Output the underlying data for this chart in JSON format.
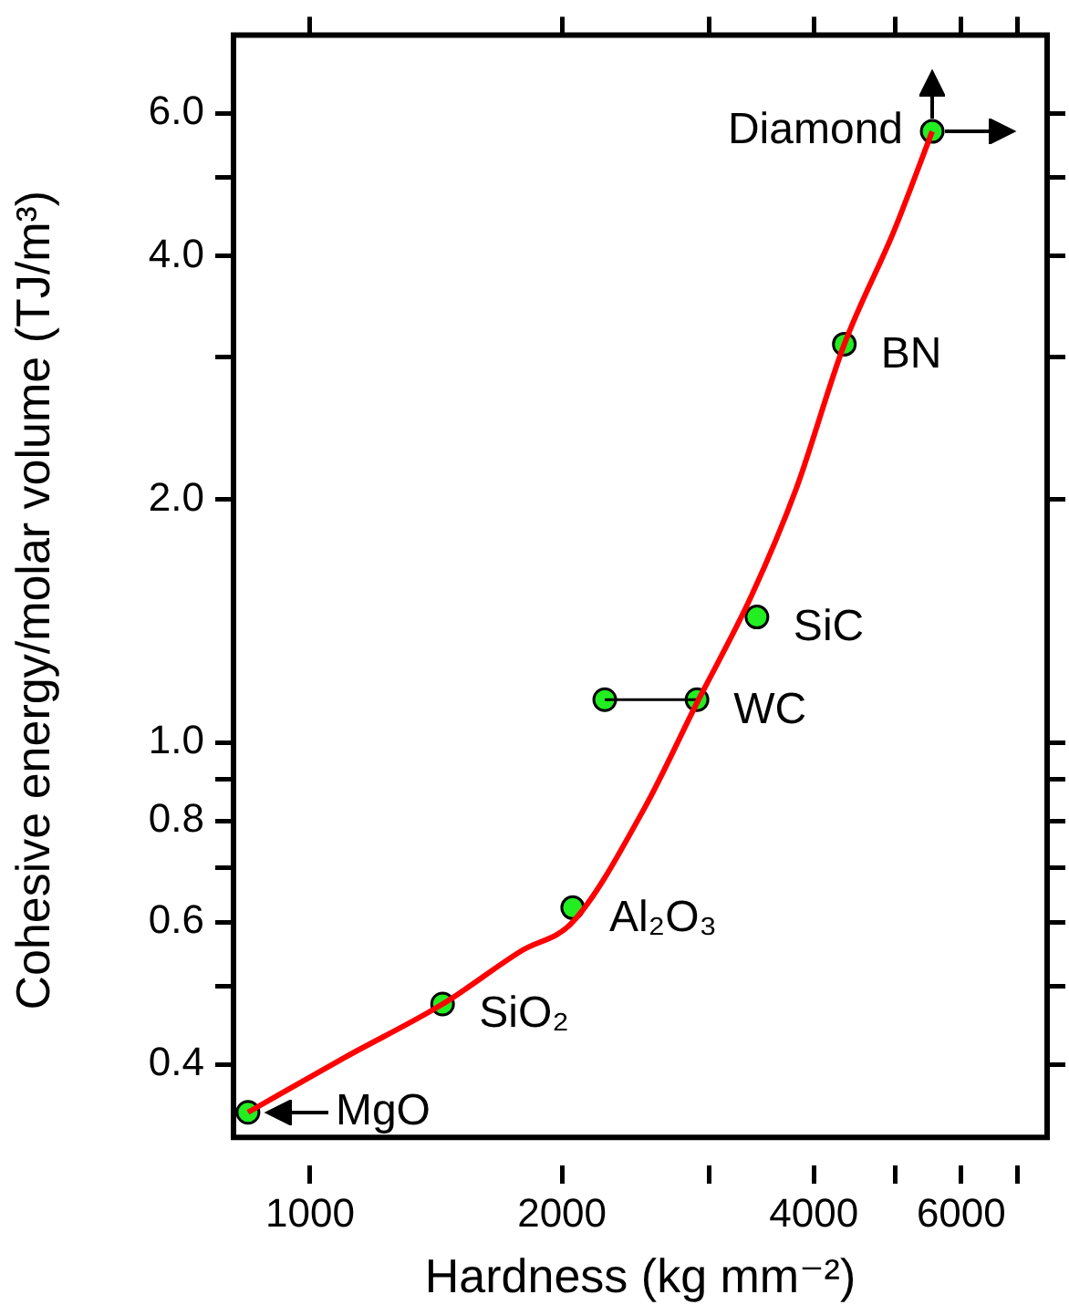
{
  "chart_data": {
    "type": "scatter",
    "xlabel": "Hardness (kg mm⁻²)",
    "ylabel": "Cohesive energy/molar volume (TJ/m³)",
    "log": "xy",
    "grid": false,
    "legend": false,
    "xlim": [
      810,
      7600
    ],
    "ylim": [
      0.325,
      7.5
    ],
    "xticks": [
      1000,
      2000,
      {
        "value": 3000,
        "label": null
      },
      4000,
      {
        "value": 5000,
        "label": null
      },
      6000,
      {
        "value": 7000,
        "label": null
      }
    ],
    "yticks": [
      0.4,
      {
        "value": 0.5,
        "label": null
      },
      0.6,
      {
        "value": 0.7,
        "label": null
      },
      0.8,
      {
        "value": 0.9,
        "label": null
      },
      {
        "value": 1,
        "label": "1.0"
      },
      {
        "value": 2,
        "label": "2.0"
      },
      {
        "value": 3,
        "label": null
      },
      {
        "value": 4,
        "label": "4.0"
      },
      {
        "value": 5,
        "label": null
      },
      {
        "value": 6,
        "label": "6.0"
      }
    ],
    "series": [
      {
        "type": "line",
        "color": "#ff0000",
        "marker": "none",
        "x": [
          843,
          1100,
          1440,
          1790,
          2060,
          2510,
          2900,
          3370,
          3810,
          4350,
          4990,
          5540
        ],
        "values": [
          0.349,
          0.408,
          0.475,
          0.553,
          0.6,
          0.83,
          1.12,
          1.52,
          2.06,
          3.11,
          4.3,
          5.7
        ]
      },
      {
        "type": "line",
        "color": "#000000",
        "marker": "none",
        "x": [
          2250,
          2900
        ],
        "values": [
          1.13,
          1.13
        ]
      },
      {
        "color": "#22ee22",
        "marker": "circle",
        "x": [
          843,
          1440,
          2060,
          2250,
          2900,
          3420,
          4350,
          5540
        ],
        "values": [
          0.349,
          0.475,
          0.625,
          1.13,
          1.13,
          1.43,
          3.11,
          5.7
        ]
      }
    ],
    "annotations": [
      {
        "text": "MgO",
        "x": 843,
        "y": 0.349
      },
      {
        "text": "SiO₂",
        "x": 1440,
        "y": 0.475
      },
      {
        "text": "Al₂O₃",
        "x": 2060,
        "y": 0.625
      },
      {
        "text": "WC",
        "x": 2900,
        "y": 1.13
      },
      {
        "text": "SiC",
        "x": 3420,
        "y": 1.43
      },
      {
        "text": "BN",
        "x": 4350,
        "y": 3.11
      },
      {
        "text": "Diamond",
        "x": 5540,
        "y": 5.7
      }
    ]
  }
}
